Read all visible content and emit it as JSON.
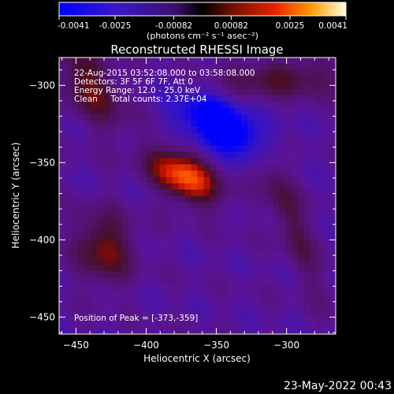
{
  "colorbar": {
    "tick_labels": [
      "-0.0041",
      "-0.0025",
      "-0.00082",
      "0.00082",
      "0.0025",
      "0.0041"
    ],
    "min": -0.0041,
    "max": 0.0041,
    "unit_label": "(photons cm⁻² s⁻¹ asec⁻²)"
  },
  "chart_data": {
    "type": "heatmap",
    "title": "Reconstructed RHESSI Image",
    "xlabel": "Heliocentric X (arcsec)",
    "ylabel": "Heliocentric Y (arcsec)",
    "xlim": [
      -462,
      -265
    ],
    "ylim": [
      -461,
      -282
    ],
    "x_ticks": [
      -450,
      -400,
      -350,
      -300
    ],
    "y_ticks": [
      -300,
      -350,
      -400,
      -450
    ],
    "x_tick_labels": [
      "−450",
      "−400",
      "−350",
      "−300"
    ],
    "y_tick_labels": [
      "−300",
      "−350",
      "−400",
      "−450"
    ],
    "sources": [
      {
        "name": "peak",
        "x": -373,
        "y": -359,
        "amplitude": 0.0041
      },
      {
        "name": "upper-left arc",
        "x": -440,
        "y": -300,
        "amplitude": 0.0022
      },
      {
        "name": "upper-right arc",
        "x": -300,
        "y": -295,
        "amplitude": 0.0018
      },
      {
        "name": "lower-left source",
        "x": -430,
        "y": -405,
        "amplitude": 0.0024
      },
      {
        "name": "right ridge",
        "x": -300,
        "y": -380,
        "amplitude": 0.0016
      },
      {
        "name": "minimum",
        "x": -345,
        "y": -327,
        "amplitude": -0.0035
      }
    ],
    "annotations": [
      "22-Aug-2015 03:52:08.000 to 03:58:08.000",
      "Detectors: 3F 5F 6F 7F, Att 0",
      "Energy Range: 12.0 - 25.0 keV",
      "Clean     Total counts: 2.37E+04"
    ],
    "peak_label": "Position of Peak = [-373,-359]"
  },
  "timestamp": "23-May-2022 00:43"
}
